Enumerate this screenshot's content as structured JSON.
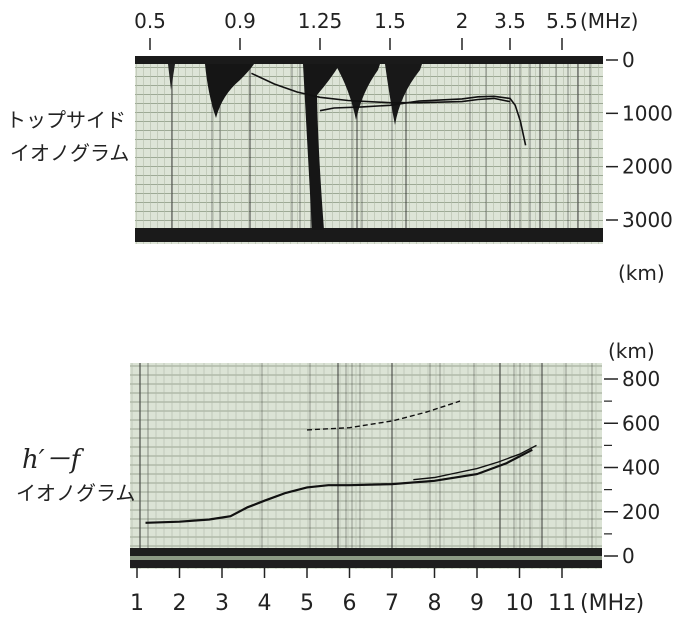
{
  "chart_data": [
    {
      "type": "line",
      "panel_label": [
        "トップサイド",
        "イオノグラム"
      ],
      "x_ticks": [
        "0.5",
        "0.9",
        "1.25",
        "1.5",
        "2",
        "3.5",
        "5.5"
      ],
      "x_unit": "(MHz)",
      "y_ticks": [
        "0",
        "1000",
        "2000",
        "3000"
      ],
      "y_unit": "(km)",
      "ylim": [
        0,
        3000
      ],
      "y_inverted": true,
      "series": [
        {
          "x": [
            0.95,
            1.05,
            1.15,
            1.25,
            1.35,
            1.5,
            1.7,
            2.0,
            2.5,
            3.0,
            3.5
          ],
          "y": [
            250,
            450,
            600,
            700,
            760,
            800,
            800,
            780,
            740,
            720,
            780
          ]
        },
        {
          "x": [
            1.25,
            1.3,
            1.4,
            1.5,
            1.7,
            2.0,
            2.5,
            3.0,
            3.5,
            3.7,
            3.9,
            4.1
          ],
          "y": [
            950,
            900,
            880,
            850,
            770,
            730,
            690,
            680,
            720,
            850,
            1150,
            1600
          ]
        }
      ]
    },
    {
      "type": "line",
      "panel_label": [
        "h′－f",
        "イオノグラム"
      ],
      "x_ticks": [
        "1",
        "2",
        "3",
        "4",
        "5",
        "6",
        "7",
        "8",
        "9",
        "10",
        "11"
      ],
      "x_unit": "(MHz)",
      "y_ticks": [
        "0",
        "200",
        "400",
        "600",
        "800"
      ],
      "y_unit": "(km)",
      "ylim": [
        0,
        800
      ],
      "series": [
        {
          "x": [
            1.2,
            2.0,
            2.7,
            3.2,
            3.6,
            4.0,
            4.5,
            5.0,
            5.5,
            6.0,
            7.0,
            8.0,
            9.0,
            9.7,
            10.3
          ],
          "y": [
            150,
            155,
            165,
            180,
            220,
            250,
            285,
            310,
            320,
            320,
            325,
            340,
            370,
            420,
            480
          ]
        },
        {
          "x": [
            7.5,
            8.0,
            8.5,
            9.0,
            9.5,
            10.0,
            10.4
          ],
          "y": [
            345,
            355,
            375,
            395,
            425,
            460,
            500
          ]
        },
        {
          "x": [
            5.0,
            6.0,
            7.0,
            7.8,
            8.6
          ],
          "y": [
            570,
            580,
            610,
            650,
            700
          ]
        }
      ]
    }
  ]
}
